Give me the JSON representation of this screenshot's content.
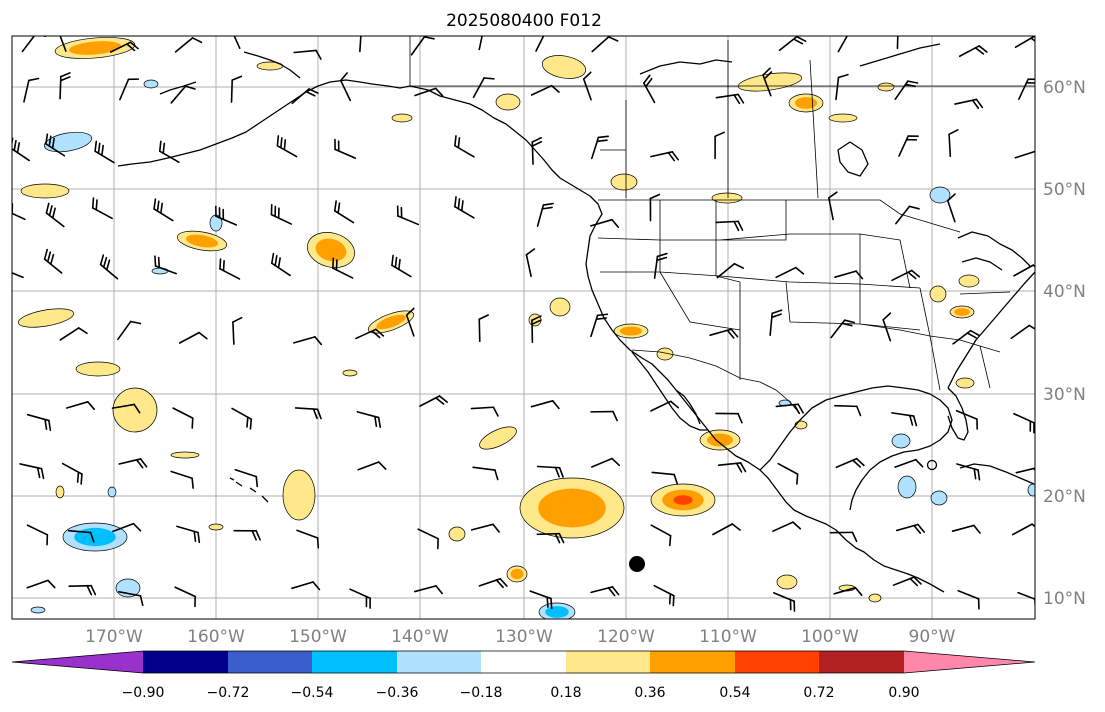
{
  "title": "2025080400 F012",
  "lon_axis": {
    "labels": [
      "170°W",
      "160°W",
      "150°W",
      "140°W",
      "130°W",
      "120°W",
      "110°W",
      "100°W",
      "90°W"
    ]
  },
  "lat_axis": {
    "labels": [
      "60°N",
      "50°N",
      "40°N",
      "30°N",
      "20°N",
      "10°N"
    ]
  },
  "colorbar": {
    "tick_labels": [
      "−0.90",
      "−0.72",
      "−0.54",
      "−0.36",
      "−0.18",
      "0.18",
      "0.36",
      "0.54",
      "0.72",
      "0.90"
    ],
    "colors": [
      "#9932cc",
      "#00008b",
      "#3a5fcd",
      "#00bfff",
      "#b0e2ff",
      "#ffffff",
      "#ffe88a",
      "#ffa000",
      "#ff4000",
      "#b22222",
      "#ff88aa"
    ]
  },
  "legend_colors": {
    "low_light": "#b0e2ff",
    "low_mid": "#00bfff",
    "high_light": "#ffe88a",
    "high_mid": "#ffa000",
    "high_strong": "#ff4000",
    "marker": "#000000"
  }
}
